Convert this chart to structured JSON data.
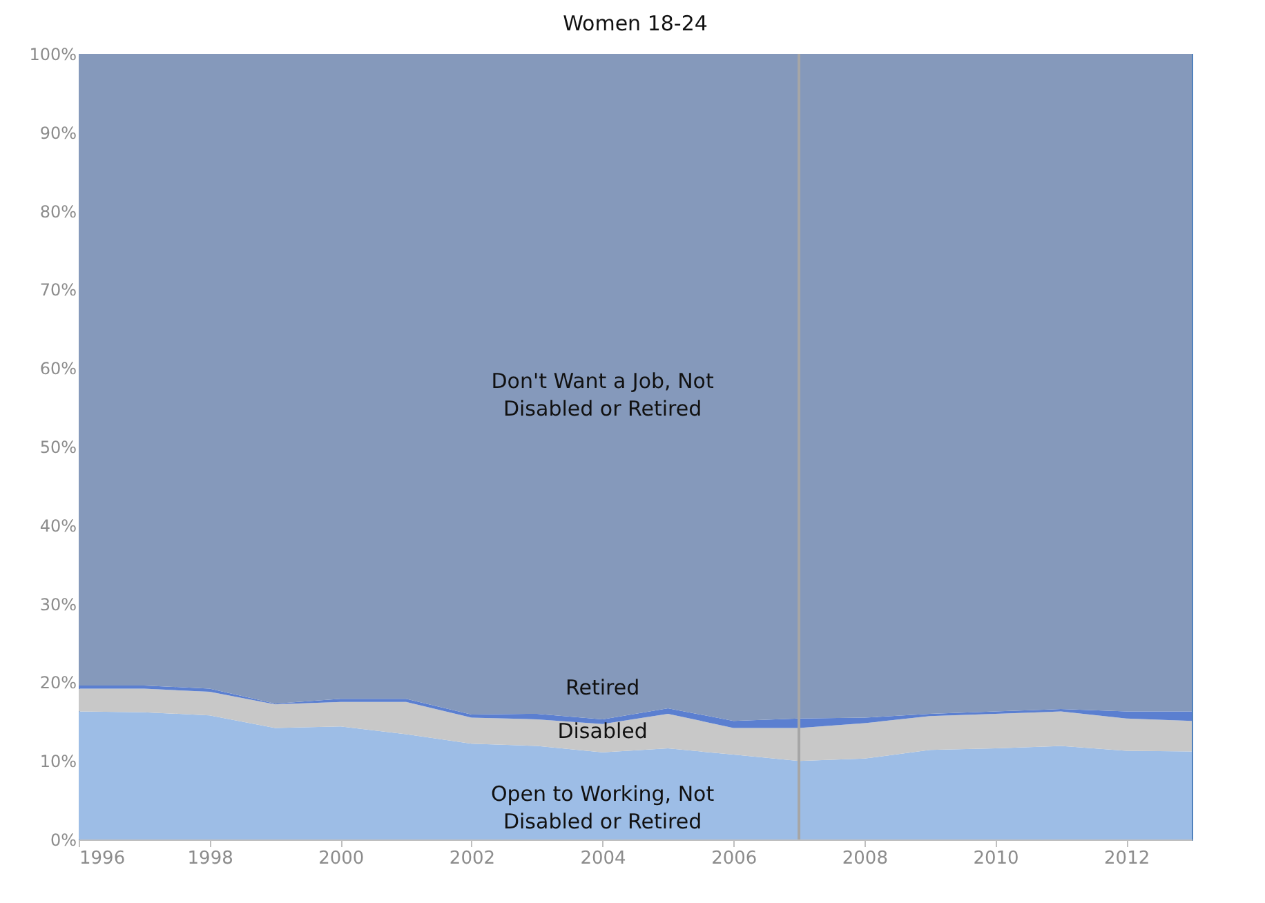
{
  "chart_data": {
    "type": "area",
    "title": "Women 18-24",
    "stacked": true,
    "x": [
      1996,
      1997,
      1998,
      1999,
      2000,
      2001,
      2002,
      2003,
      2004,
      2005,
      2006,
      2007,
      2008,
      2009,
      2010,
      2011,
      2012,
      2013
    ],
    "series": [
      {
        "name": "Open to Working, Not Disabled or Retired",
        "color": "#9dbde6",
        "values": [
          16.3,
          16.2,
          15.8,
          14.2,
          14.4,
          13.4,
          12.2,
          11.9,
          11.1,
          11.6,
          10.8,
          10.0,
          10.3,
          11.4,
          11.6,
          11.9,
          11.3,
          11.2
        ]
      },
      {
        "name": "Disabled",
        "color": "#c8c8c8",
        "values": [
          2.9,
          3.0,
          3.0,
          3.0,
          3.1,
          4.1,
          3.3,
          3.4,
          3.6,
          4.4,
          3.4,
          4.2,
          4.5,
          4.3,
          4.4,
          4.4,
          4.1,
          3.9
        ]
      },
      {
        "name": "Retired",
        "color": "#5b7fd0",
        "values": [
          0.4,
          0.4,
          0.4,
          0.1,
          0.4,
          0.4,
          0.4,
          0.7,
          0.6,
          0.7,
          0.9,
          1.2,
          0.7,
          0.3,
          0.3,
          0.3,
          0.9,
          1.2
        ]
      },
      {
        "name": "Don't Want a Job, Not Disabled or Retired",
        "color": "#8599bb",
        "values": [
          80.4,
          80.4,
          80.8,
          82.7,
          82.1,
          82.1,
          84.1,
          84.0,
          84.7,
          83.3,
          84.9,
          84.6,
          84.5,
          84.0,
          83.7,
          83.4,
          83.7,
          83.7
        ]
      }
    ],
    "xlim": [
      1996,
      2013
    ],
    "xticks": [
      1996,
      1998,
      2000,
      2002,
      2004,
      2006,
      2008,
      2010,
      2012
    ],
    "ylim": [
      0,
      100
    ],
    "yticks": [
      {
        "value": 0,
        "label": "0%"
      },
      {
        "value": 10,
        "label": "10%"
      },
      {
        "value": 20,
        "label": "20%"
      },
      {
        "value": 30,
        "label": "30%"
      },
      {
        "value": 40,
        "label": "40%"
      },
      {
        "value": 50,
        "label": "50%"
      },
      {
        "value": 60,
        "label": "60%"
      },
      {
        "value": 70,
        "label": "70%"
      },
      {
        "value": 80,
        "label": "80%"
      },
      {
        "value": 90,
        "label": "90%"
      },
      {
        "value": 100,
        "label": "100%"
      }
    ],
    "ref_lines": [
      {
        "axis": "x",
        "value": 2007,
        "color": "#a6a6a6"
      }
    ],
    "grid": false
  }
}
